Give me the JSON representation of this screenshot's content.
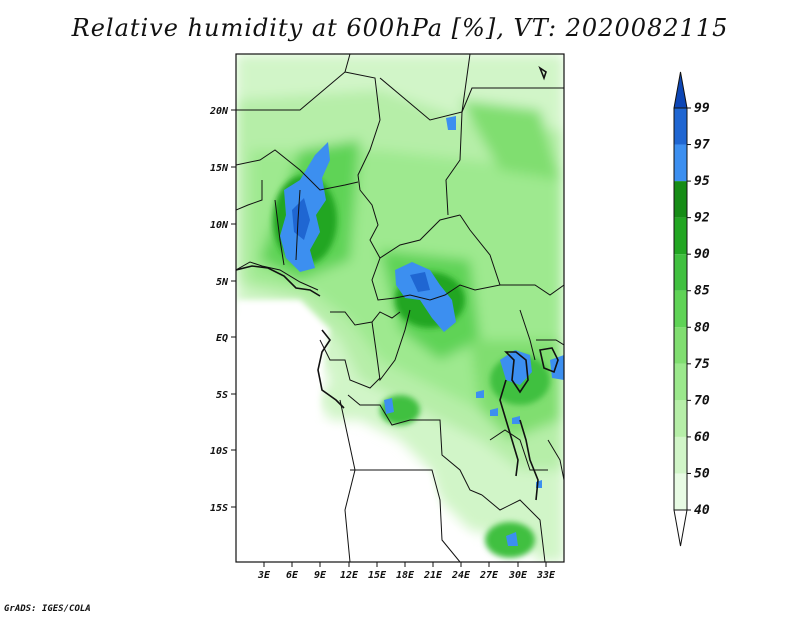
{
  "title": "Relative humidity at 600hPa [%], VT: 2020082115",
  "credit": "GrADS: IGES/COLA",
  "lat_labels": [
    "20N",
    "15N",
    "10N",
    "5N",
    "EQ",
    "5S",
    "10S",
    "15S"
  ],
  "lon_labels": [
    "3E",
    "6E",
    "9E",
    "12E",
    "15E",
    "18E",
    "21E",
    "24E",
    "27E",
    "30E",
    "33E"
  ],
  "colorbar": {
    "levels": [
      "40",
      "50",
      "60",
      "70",
      "75",
      "80",
      "85",
      "90",
      "92",
      "95",
      "97",
      "99"
    ],
    "colors": [
      "#ffffff",
      "#e8fbe4",
      "#d1f5c8",
      "#b6eea8",
      "#9be88c",
      "#80de70",
      "#5fd356",
      "#40c03f",
      "#22a622",
      "#168c16",
      "#3c8ff0",
      "#1f66d2",
      "#0d46b5"
    ]
  },
  "map": {
    "variable": "Relative humidity",
    "level": "600hPa",
    "units": "%",
    "valid_time": "2020082115"
  }
}
